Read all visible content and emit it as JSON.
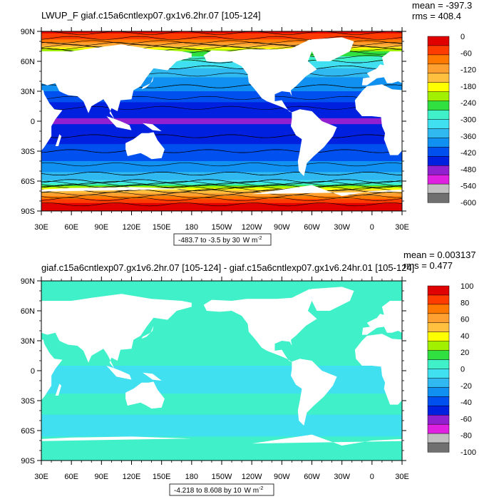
{
  "colors": {
    "land": "#ffffff",
    "frame": "#000000",
    "top_scale": [
      "#707070",
      "#c0c0c0",
      "#e020e0",
      "#9020d0",
      "#0020e0",
      "#0050f0",
      "#1090f0",
      "#30b8f0",
      "#40e0f0",
      "#40f0c8",
      "#30e040",
      "#a0f000",
      "#ffff00",
      "#ffc040",
      "#ffa030",
      "#ff7800",
      "#ff3c00",
      "#e00000"
    ],
    "bottom_scale": [
      "#707070",
      "#c0c0c0",
      "#e020e0",
      "#9020d0",
      "#0020e0",
      "#0050f0",
      "#1090f0",
      "#30b8f0",
      "#40e0f0",
      "#40f0c8",
      "#30e040",
      "#a0f000",
      "#ffff00",
      "#ffc040",
      "#ffa030",
      "#ff7800",
      "#ff3c00",
      "#e00000"
    ]
  },
  "chart_data": [
    {
      "type": "heatmap",
      "title": "LWUP_F giaf.c15a6cntlexp07.gx1v6.2hr.07 [105-124]",
      "mean_label": "mean = -397.3",
      "rms_label": "rms = 408.4",
      "lat_ticks": [
        "90N",
        "60N",
        "30N",
        "0",
        "30S",
        "60S",
        "90S"
      ],
      "lon_ticks": [
        "30E",
        "60E",
        "90E",
        "120E",
        "150E",
        "180",
        "150W",
        "120W",
        "90W",
        "60W",
        "30W",
        "0",
        "30E"
      ],
      "colorbar_labels": [
        "0",
        "-60",
        "-120",
        "-180",
        "-240",
        "-300",
        "-360",
        "-420",
        "-480",
        "-540",
        "-600"
      ],
      "range_note": "-483.7 to -3.5 by 30",
      "units": "W m",
      "units_exp": "-2",
      "contour_levels": [
        -480,
        -450,
        -420,
        -390,
        -360,
        -330,
        -300,
        -270,
        -240,
        -210,
        -180,
        -150,
        -120,
        -90,
        -60,
        -30
      ],
      "zonal_profile": {
        "lat": [
          90,
          80,
          70,
          60,
          50,
          40,
          30,
          20,
          10,
          0,
          -10,
          -20,
          -30,
          -40,
          -50,
          -60,
          -70,
          -80,
          -90
        ],
        "value": [
          -20,
          -80,
          -230,
          -300,
          -350,
          -380,
          -400,
          -430,
          -460,
          -470,
          -460,
          -440,
          -420,
          -400,
          -370,
          -330,
          -150,
          -40,
          -10
        ]
      }
    },
    {
      "type": "heatmap",
      "title": "giaf.c15a6cntlexp07.gx1v6.2hr.07 [105-124] - giaf.c15a6cntlexp07.gx1v6.24hr.01 [105-124]",
      "mean_label": "mean = 0.003137",
      "rms_label": "rms = 0.477",
      "lat_ticks": [
        "90N",
        "60N",
        "30N",
        "0",
        "30S",
        "60S",
        "90S"
      ],
      "lon_ticks": [
        "30E",
        "60E",
        "90E",
        "120E",
        "150E",
        "180",
        "150W",
        "120W",
        "90W",
        "60W",
        "30W",
        "0",
        "30E"
      ],
      "colorbar_labels": [
        "100",
        "80",
        "60",
        "40",
        "20",
        "0",
        "-20",
        "-40",
        "-60",
        "-80",
        "-100"
      ],
      "range_note": "-4.218 to 8.608 by 10",
      "units": "W m",
      "units_exp": "-2",
      "zonal_profile": {
        "lat": [
          90,
          80,
          70,
          60,
          50,
          40,
          30,
          20,
          10,
          0,
          -10,
          -20,
          -30,
          -40,
          -50,
          -60,
          -70,
          -80,
          -90
        ],
        "value": [
          0.1,
          0.1,
          0.2,
          0.4,
          0.5,
          0.3,
          0.1,
          0.5,
          0.2,
          -0.2,
          -0.3,
          -0.1,
          0.2,
          0.4,
          -0.5,
          -0.5,
          0.3,
          0.1,
          0.1
        ]
      }
    }
  ]
}
